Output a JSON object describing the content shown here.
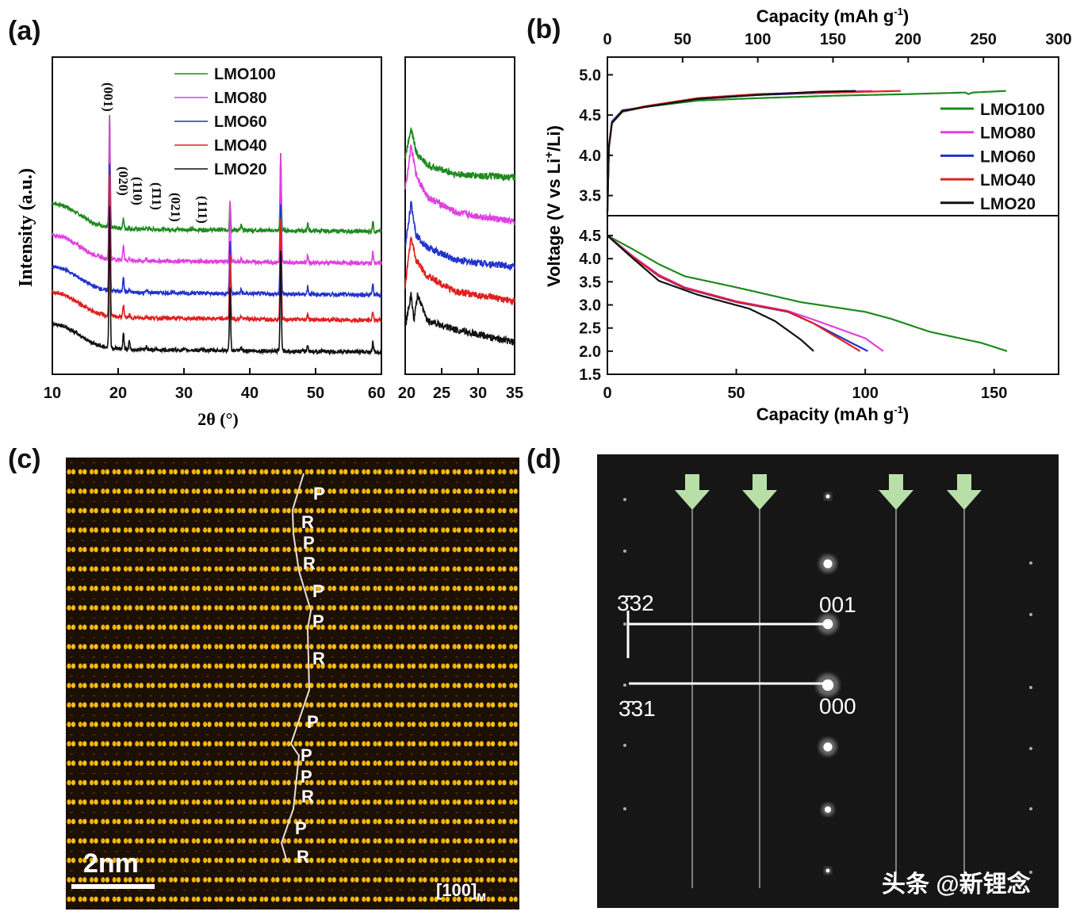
{
  "panels": {
    "a": "(a)",
    "b": "(b)",
    "c": "(c)",
    "d": "(d)"
  },
  "chart_data": [
    {
      "type": "line",
      "panel": "a",
      "xlabel": "2θ (°)",
      "ylabel": "Intensity (a.u.)",
      "xlim": [
        10,
        60
      ],
      "x_ticks": [
        10,
        20,
        30,
        40,
        50,
        60
      ],
      "y_ticks": false,
      "legend": "top-center",
      "peak_labels": [
        "(001)",
        "(020)",
        "(110)",
        "(1̄11)",
        "(021)",
        "(111)"
      ],
      "peaks_2theta": [
        18.7,
        20.8,
        21.7,
        24.3,
        37.0,
        38.7,
        44.7,
        48.8,
        58.7
      ],
      "low_angle_background": [
        [
          10,
          9
        ],
        [
          12,
          8
        ],
        [
          14,
          5.5
        ],
        [
          16,
          3
        ],
        [
          18,
          1.5
        ],
        [
          22,
          0.8
        ],
        [
          60,
          0
        ]
      ],
      "series": [
        {
          "name": "LMO100",
          "color": "#1e8a1e",
          "offset": 45,
          "peak_intensities": [
            35,
            3,
            0.5,
            0.5,
            9,
            1.5,
            24,
            2.5,
            3.5
          ]
        },
        {
          "name": "LMO80",
          "color": "#e040e0",
          "offset": 35,
          "peak_intensities": [
            45,
            5,
            0.8,
            0.6,
            19,
            1.2,
            34,
            2.5,
            3.5
          ]
        },
        {
          "name": "LMO60",
          "color": "#2233cc",
          "offset": 25,
          "peak_intensities": [
            40,
            5,
            0.8,
            0.8,
            16,
            1.2,
            28,
            2.5,
            3.5
          ]
        },
        {
          "name": "LMO40",
          "color": "#e02020",
          "offset": 17,
          "peak_intensities": [
            45,
            4,
            0.8,
            0.6,
            20,
            1,
            32,
            2,
            3
          ]
        },
        {
          "name": "LMO20",
          "color": "#111111",
          "offset": 7,
          "peak_intensities": [
            45,
            5,
            3,
            1,
            20,
            1,
            32,
            2,
            3
          ]
        }
      ]
    },
    {
      "type": "line",
      "panel": "a-inset",
      "xlim": [
        20,
        35
      ],
      "x_ticks": [
        20,
        25,
        30,
        35
      ],
      "series": [
        {
          "name": "LMO100",
          "color": "#1e8a1e",
          "points": [
            [
              20,
              68
            ],
            [
              20.8,
              78
            ],
            [
              21.5,
              70
            ],
            [
              23,
              66
            ],
            [
              27,
              63
            ],
            [
              35,
              62
            ]
          ]
        },
        {
          "name": "LMO80",
          "color": "#e040e0",
          "points": [
            [
              20,
              58
            ],
            [
              20.8,
              72
            ],
            [
              21.5,
              63
            ],
            [
              23,
              56
            ],
            [
              27,
              51
            ],
            [
              35,
              48
            ]
          ]
        },
        {
          "name": "LMO60",
          "color": "#2233cc",
          "points": [
            [
              20,
              40
            ],
            [
              20.8,
              54
            ],
            [
              21.5,
              44
            ],
            [
              23,
              40
            ],
            [
              27,
              36
            ],
            [
              35,
              34
            ]
          ]
        },
        {
          "name": "LMO40",
          "color": "#e02020",
          "points": [
            [
              20,
              28
            ],
            [
              20.8,
              43
            ],
            [
              21.5,
              36
            ],
            [
              23,
              31
            ],
            [
              27,
              26
            ],
            [
              35,
              23
            ]
          ]
        },
        {
          "name": "LMO20",
          "color": "#111111",
          "points": [
            [
              20,
              15
            ],
            [
              20.8,
              25
            ],
            [
              21.2,
              17
            ],
            [
              21.7,
              25
            ],
            [
              23,
              17
            ],
            [
              27,
              14
            ],
            [
              35,
              10
            ]
          ]
        }
      ]
    },
    {
      "type": "line",
      "panel": "b",
      "xlabel_main": "Capacity (mAh g",
      "xlabel_sup": "-1",
      "xlabel_end": ")",
      "ylabel_main": "Voltage  (V vs Li",
      "ylabel_sup": "+",
      "ylabel_end": "/Li)",
      "legend": "right",
      "charge": {
        "xlim": [
          0,
          300
        ],
        "ylim": [
          3.25,
          5.22
        ],
        "x_ticks": [
          0,
          50,
          100,
          150,
          200,
          250,
          300
        ],
        "y_ticks": [
          "3.5",
          "4.0",
          "4.5",
          "5.0"
        ],
        "series": [
          {
            "name": "LMO100",
            "color": "#1e8a1e",
            "points": [
              [
                0,
                3.3
              ],
              [
                1,
                4.1
              ],
              [
                3,
                4.4
              ],
              [
                10,
                4.54
              ],
              [
                25,
                4.6
              ],
              [
                60,
                4.68
              ],
              [
                100,
                4.71
              ],
              [
                150,
                4.74
              ],
              [
                200,
                4.76
              ],
              [
                238,
                4.78
              ],
              [
                240,
                4.76
              ],
              [
                243,
                4.78
              ],
              [
                265,
                4.8
              ]
            ]
          },
          {
            "name": "LMO80",
            "color": "#e040e0",
            "points": [
              [
                0,
                3.3
              ],
              [
                1,
                4.1
              ],
              [
                3,
                4.4
              ],
              [
                10,
                4.55
              ],
              [
                25,
                4.6
              ],
              [
                60,
                4.71
              ],
              [
                100,
                4.76
              ],
              [
                150,
                4.79
              ],
              [
                176,
                4.8
              ]
            ]
          },
          {
            "name": "LMO60",
            "color": "#2233cc",
            "points": [
              [
                0,
                3.3
              ],
              [
                1,
                4.1
              ],
              [
                3,
                4.42
              ],
              [
                10,
                4.56
              ],
              [
                25,
                4.6
              ],
              [
                60,
                4.7
              ],
              [
                100,
                4.75
              ],
              [
                150,
                4.78
              ],
              [
                170,
                4.79
              ]
            ]
          },
          {
            "name": "LMO40",
            "color": "#e02020",
            "points": [
              [
                0,
                3.3
              ],
              [
                1,
                4.1
              ],
              [
                3,
                4.4
              ],
              [
                10,
                4.55
              ],
              [
                25,
                4.61
              ],
              [
                60,
                4.71
              ],
              [
                100,
                4.76
              ],
              [
                150,
                4.78
              ],
              [
                195,
                4.8
              ]
            ]
          },
          {
            "name": "LMO20",
            "color": "#111111",
            "points": [
              [
                0,
                3.3
              ],
              [
                1,
                4.1
              ],
              [
                3,
                4.4
              ],
              [
                10,
                4.55
              ],
              [
                25,
                4.6
              ],
              [
                60,
                4.7
              ],
              [
                100,
                4.75
              ],
              [
                140,
                4.79
              ],
              [
                165,
                4.8
              ]
            ]
          }
        ]
      },
      "discharge": {
        "xlim": [
          0,
          175
        ],
        "ylim": [
          1.5,
          4.93
        ],
        "x_ticks": [
          0,
          50,
          100,
          150
        ],
        "y_ticks": [
          "1.5",
          "2.0",
          "2.5",
          "3.0",
          "3.5",
          "4.0",
          "4.5"
        ],
        "series": [
          {
            "name": "LMO100",
            "color": "#1e8a1e",
            "points": [
              [
                0,
                4.5
              ],
              [
                10,
                4.2
              ],
              [
                20,
                3.88
              ],
              [
                30,
                3.62
              ],
              [
                50,
                3.38
              ],
              [
                75,
                3.06
              ],
              [
                100,
                2.85
              ],
              [
                110,
                2.7
              ],
              [
                125,
                2.42
              ],
              [
                145,
                2.18
              ],
              [
                155,
                2.0
              ]
            ]
          },
          {
            "name": "LMO80",
            "color": "#e040e0",
            "points": [
              [
                0,
                4.5
              ],
              [
                10,
                4.05
              ],
              [
                20,
                3.65
              ],
              [
                30,
                3.38
              ],
              [
                50,
                3.08
              ],
              [
                70,
                2.87
              ],
              [
                80,
                2.68
              ],
              [
                100,
                2.28
              ],
              [
                107,
                2.0
              ]
            ]
          },
          {
            "name": "LMO60",
            "color": "#2233cc",
            "points": [
              [
                0,
                4.5
              ],
              [
                10,
                4.03
              ],
              [
                20,
                3.62
              ],
              [
                30,
                3.36
              ],
              [
                50,
                3.06
              ],
              [
                70,
                2.85
              ],
              [
                80,
                2.6
              ],
              [
                95,
                2.17
              ],
              [
                101,
                2.0
              ]
            ]
          },
          {
            "name": "LMO40",
            "color": "#e02020",
            "points": [
              [
                0,
                4.5
              ],
              [
                10,
                4.03
              ],
              [
                20,
                3.63
              ],
              [
                30,
                3.37
              ],
              [
                50,
                3.07
              ],
              [
                70,
                2.86
              ],
              [
                80,
                2.6
              ],
              [
                92,
                2.2
              ],
              [
                98,
                2.0
              ]
            ]
          },
          {
            "name": "LMO20",
            "color": "#111111",
            "points": [
              [
                0,
                4.5
              ],
              [
                10,
                4.0
              ],
              [
                20,
                3.52
              ],
              [
                35,
                3.22
              ],
              [
                55,
                2.92
              ],
              [
                65,
                2.65
              ],
              [
                75,
                2.25
              ],
              [
                80,
                2.0
              ]
            ]
          }
        ]
      }
    }
  ],
  "panel_c": {
    "stacking_labels": [
      "P",
      "R",
      "P",
      "R",
      "P",
      "P",
      "R",
      "P",
      "P",
      "P",
      "R",
      "P",
      "R"
    ],
    "scale_bar": "2nm",
    "zone_axis": "[100]",
    "zone_axis_sub": "M"
  },
  "panel_d": {
    "spot_332": "3̄32",
    "spot_001": "001",
    "spot_331": "3̄31",
    "spot_000": "000",
    "arrow_color": "#b9dfa9"
  },
  "watermark": "头条 @新锂念"
}
